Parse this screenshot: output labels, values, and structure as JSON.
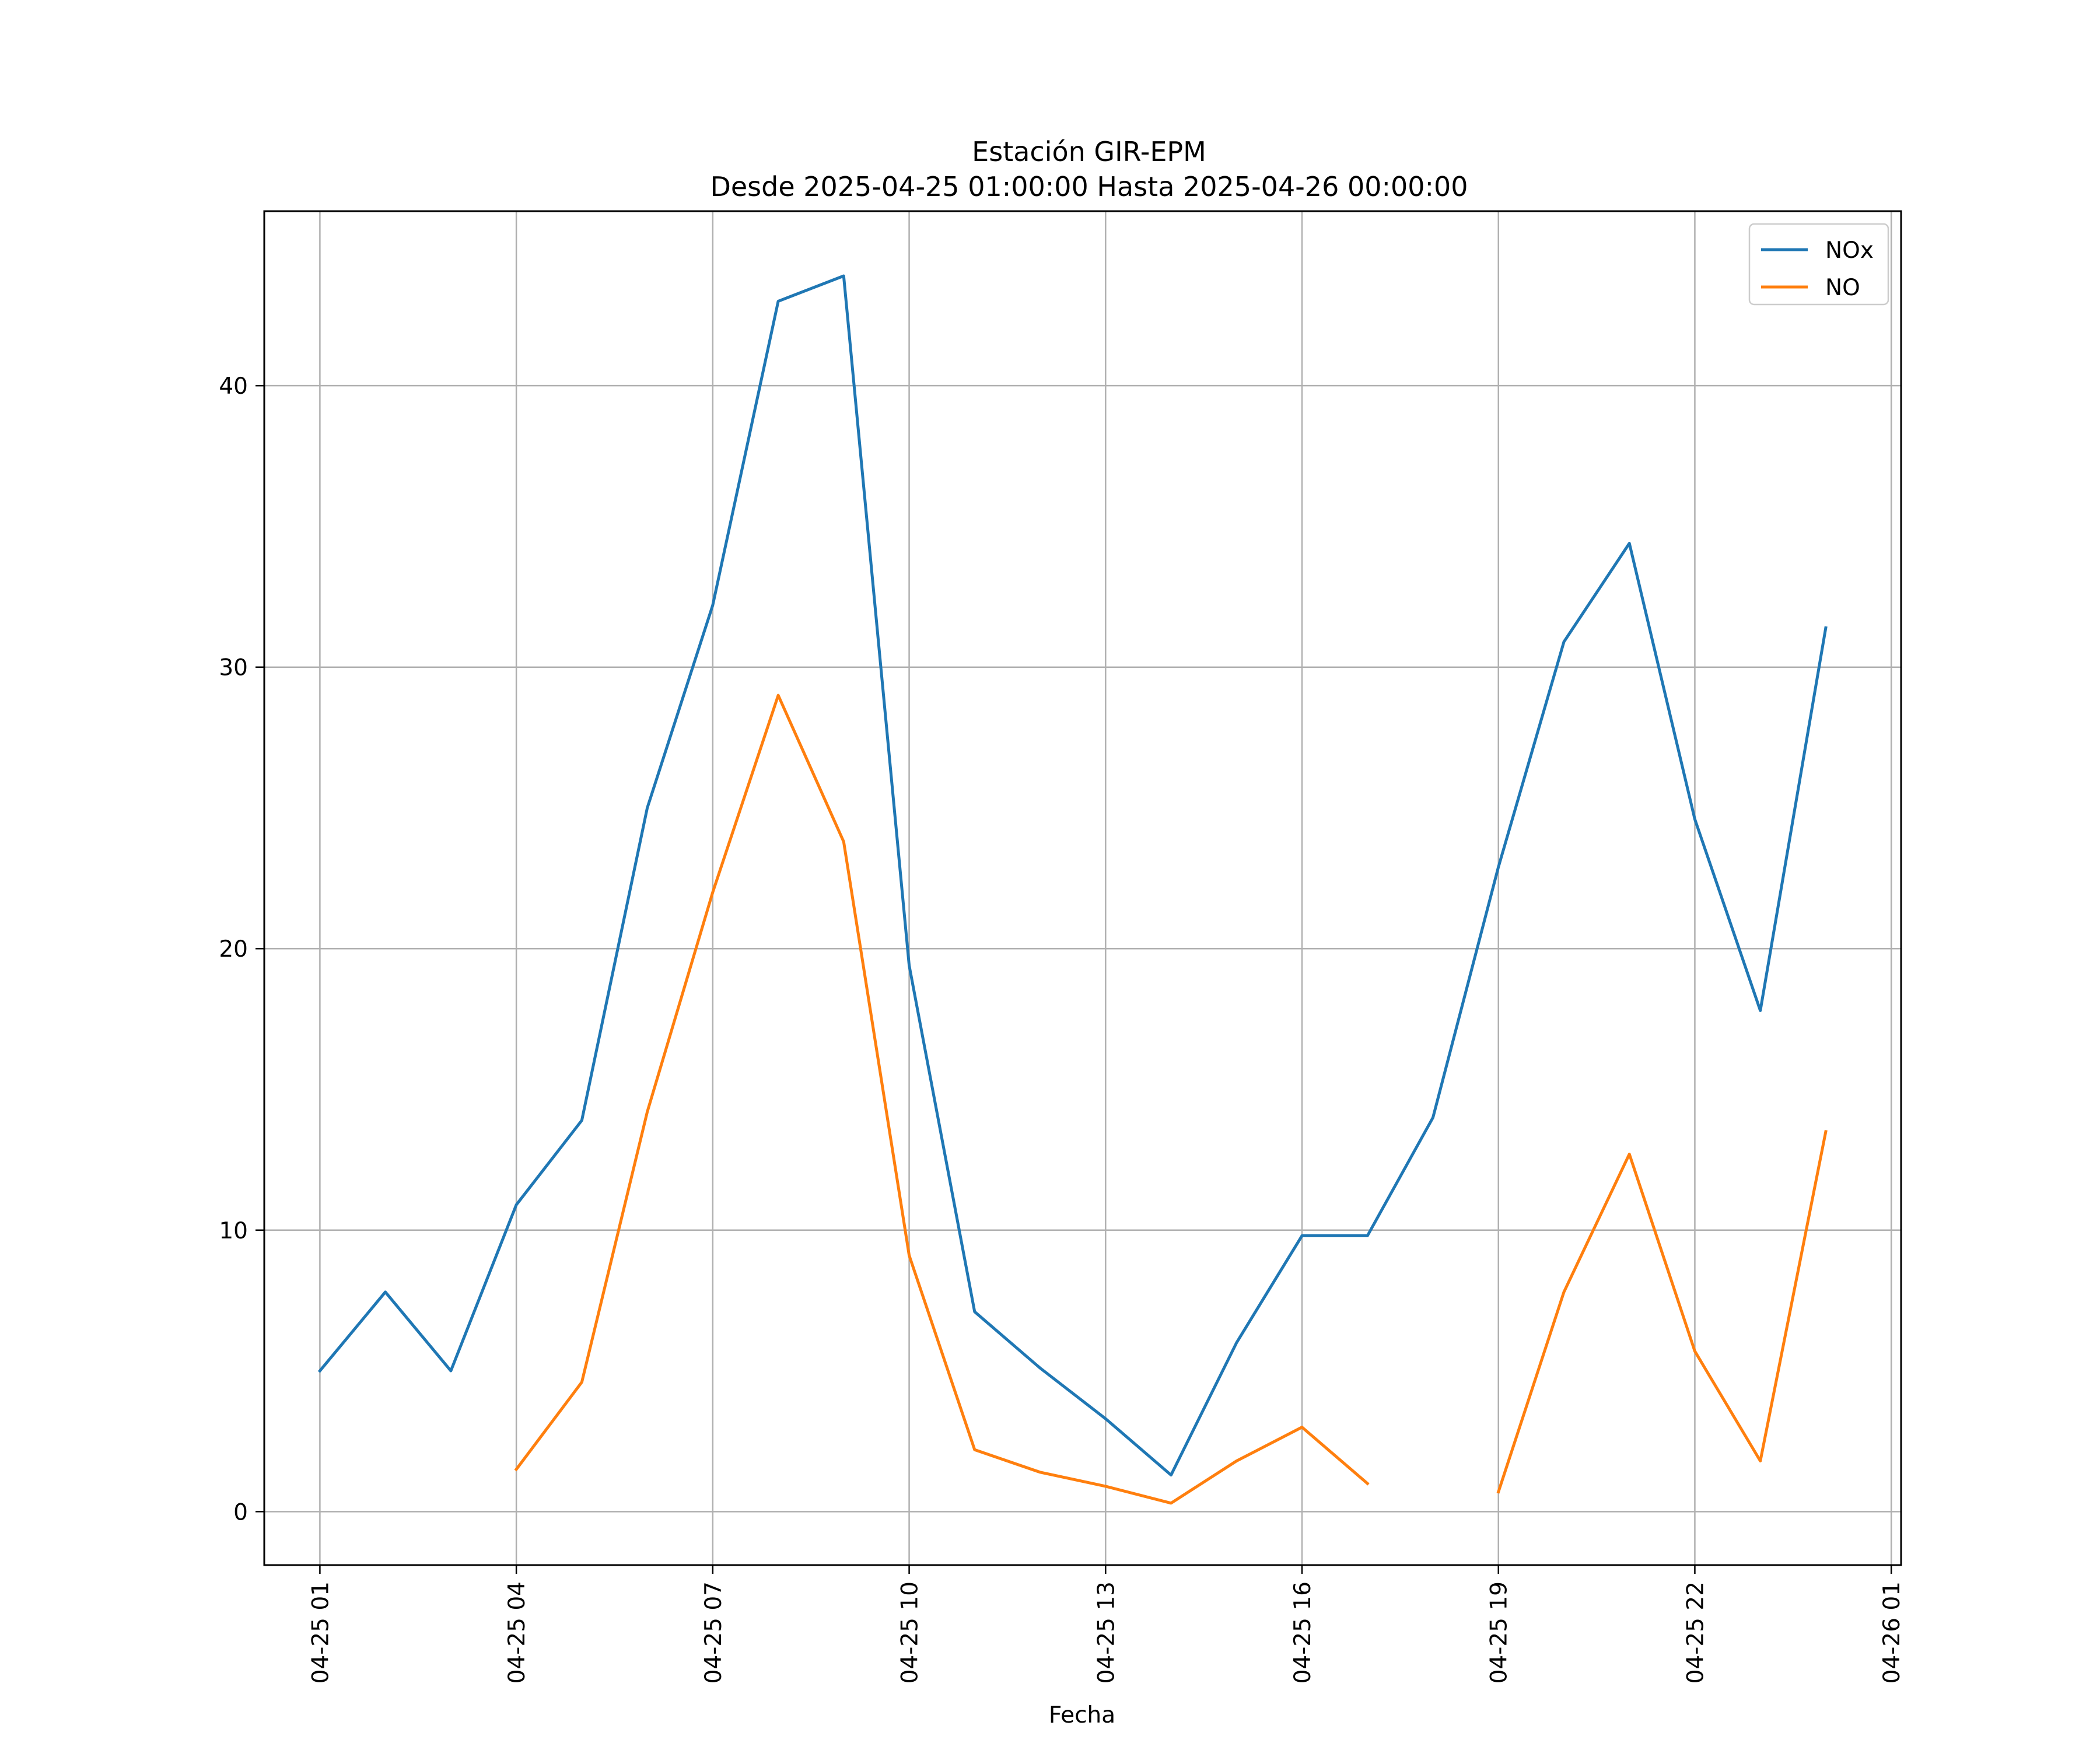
{
  "chart_data": {
    "type": "line",
    "title": "Estación GIR-EPM",
    "subtitle": "Desde 2025-04-25 01:00:00 Hasta 2025-04-26 00:00:00",
    "xlabel": "Fecha",
    "ylabel": "",
    "x": [
      "2025-04-25 01:00",
      "2025-04-25 02:00",
      "2025-04-25 03:00",
      "2025-04-25 04:00",
      "2025-04-25 05:00",
      "2025-04-25 06:00",
      "2025-04-25 07:00",
      "2025-04-25 08:00",
      "2025-04-25 09:00",
      "2025-04-25 10:00",
      "2025-04-25 11:00",
      "2025-04-25 12:00",
      "2025-04-25 13:00",
      "2025-04-25 14:00",
      "2025-04-25 15:00",
      "2025-04-25 16:00",
      "2025-04-25 17:00",
      "2025-04-25 18:00",
      "2025-04-25 19:00",
      "2025-04-25 20:00",
      "2025-04-25 21:00",
      "2025-04-25 22:00",
      "2025-04-25 23:00",
      "2025-04-26 00:00"
    ],
    "series": [
      {
        "name": "NOx",
        "color": "#1f77b4",
        "values": [
          5.0,
          7.8,
          5.0,
          10.9,
          13.9,
          25.0,
          32.2,
          43.0,
          43.9,
          19.4,
          7.1,
          5.1,
          3.3,
          1.3,
          6.0,
          9.8,
          9.8,
          14.0,
          22.9,
          30.9,
          34.4,
          24.6,
          17.8,
          31.4
        ]
      },
      {
        "name": "NO",
        "color": "#ff7f0e",
        "values": [
          null,
          null,
          null,
          1.5,
          4.6,
          14.2,
          22.0,
          29.0,
          23.8,
          9.1,
          2.2,
          1.4,
          0.9,
          0.3,
          1.8,
          3.0,
          1.0,
          null,
          0.7,
          7.8,
          12.7,
          5.7,
          1.8,
          13.5
        ]
      }
    ],
    "xticks": [
      "04-25 01",
      "04-25 04",
      "04-25 07",
      "04-25 10",
      "04-25 13",
      "04-25 16",
      "04-25 19",
      "04-25 22",
      "04-26 01"
    ],
    "yticks": [
      0,
      10,
      20,
      30,
      40
    ],
    "ylim": [
      -1.9,
      46.2
    ],
    "xlim": [
      "2025-04-25 00:09",
      "2025-04-26 01:09"
    ],
    "grid": true,
    "legend_position": "top-right"
  }
}
